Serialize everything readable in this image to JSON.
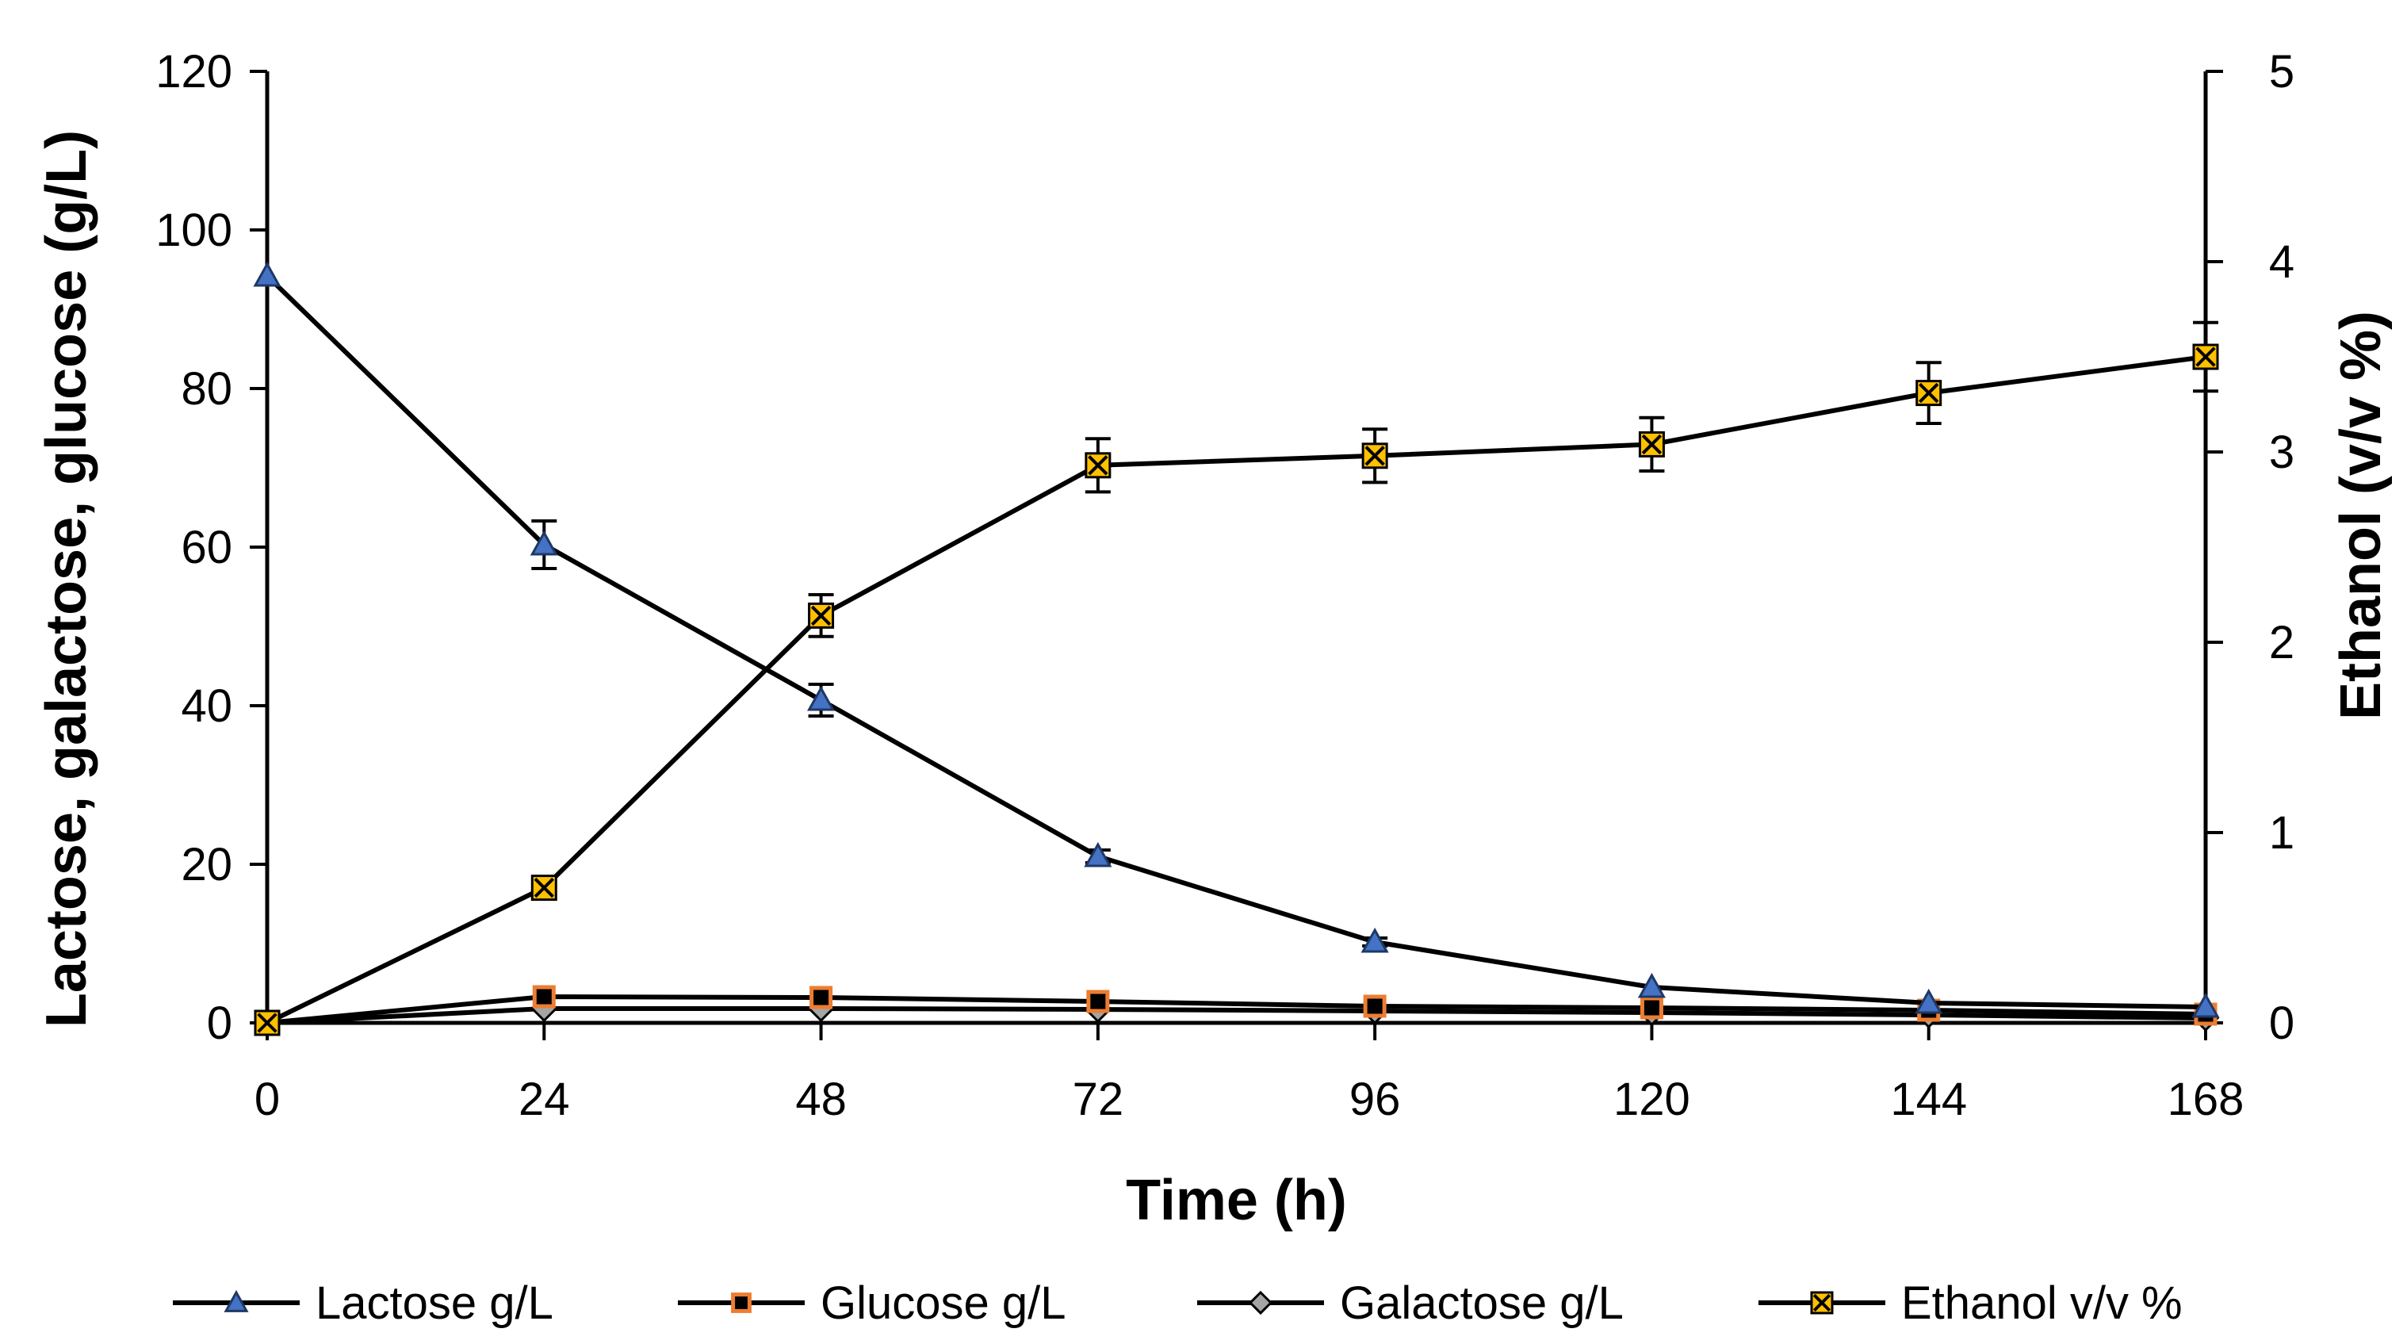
{
  "chart_data": {
    "type": "line",
    "xlabel": "Time (h)",
    "ylabel": "Lactose, galactose, glucose (g/L)",
    "y2label": "Ethanol (v/v %)",
    "x_ticks": [
      0,
      24,
      48,
      72,
      96,
      120,
      144,
      168
    ],
    "y_ticks": [
      0,
      20,
      40,
      60,
      80,
      100,
      120
    ],
    "y2_ticks": [
      0,
      1,
      2,
      3,
      4,
      5
    ],
    "xlim": [
      0,
      168
    ],
    "ylim": [
      0,
      120
    ],
    "y2lim": [
      0,
      5
    ],
    "grid": false,
    "legend_position": "bottom",
    "series": [
      {
        "name": "Lactose g/L",
        "axis": "left",
        "marker": "triangle",
        "marker_fill": "#4472C4",
        "x": [
          0,
          24,
          48,
          72,
          96,
          120,
          144,
          168
        ],
        "values": [
          94.2,
          60.3,
          40.7,
          21.0,
          10.2,
          4.5,
          2.5,
          2.0
        ],
        "errors": [
          0,
          3.0,
          2.0,
          0.8,
          0.5,
          0,
          0,
          0
        ]
      },
      {
        "name": "Glucose g/L",
        "axis": "left",
        "marker": "square",
        "marker_fill": "#ED7D31",
        "x": [
          0,
          24,
          48,
          72,
          96,
          120,
          144,
          168
        ],
        "values": [
          0,
          3.3,
          3.2,
          2.7,
          2.1,
          1.9,
          1.6,
          1.1
        ],
        "errors": [
          0,
          0,
          0,
          0,
          0,
          0,
          0,
          0
        ]
      },
      {
        "name": "Galactose g/L",
        "axis": "left",
        "marker": "diamond",
        "marker_fill": "#A5A5A5",
        "x": [
          0,
          24,
          48,
          72,
          96,
          120,
          144,
          168
        ],
        "values": [
          0,
          1.8,
          1.8,
          1.7,
          1.5,
          1.3,
          1.0,
          0.6
        ],
        "errors": [
          0,
          0,
          0,
          0,
          0,
          0,
          0,
          0
        ]
      },
      {
        "name": "Ethanol v/v %",
        "axis": "right",
        "marker": "x-square",
        "marker_fill": "#FFC000",
        "x": [
          0,
          24,
          48,
          72,
          96,
          120,
          144,
          168
        ],
        "values": [
          0,
          0.71,
          2.14,
          2.93,
          2.98,
          3.04,
          3.31,
          3.5
        ],
        "errors": [
          0,
          0,
          0.11,
          0.14,
          0.14,
          0.14,
          0.16,
          0.18
        ]
      }
    ]
  }
}
